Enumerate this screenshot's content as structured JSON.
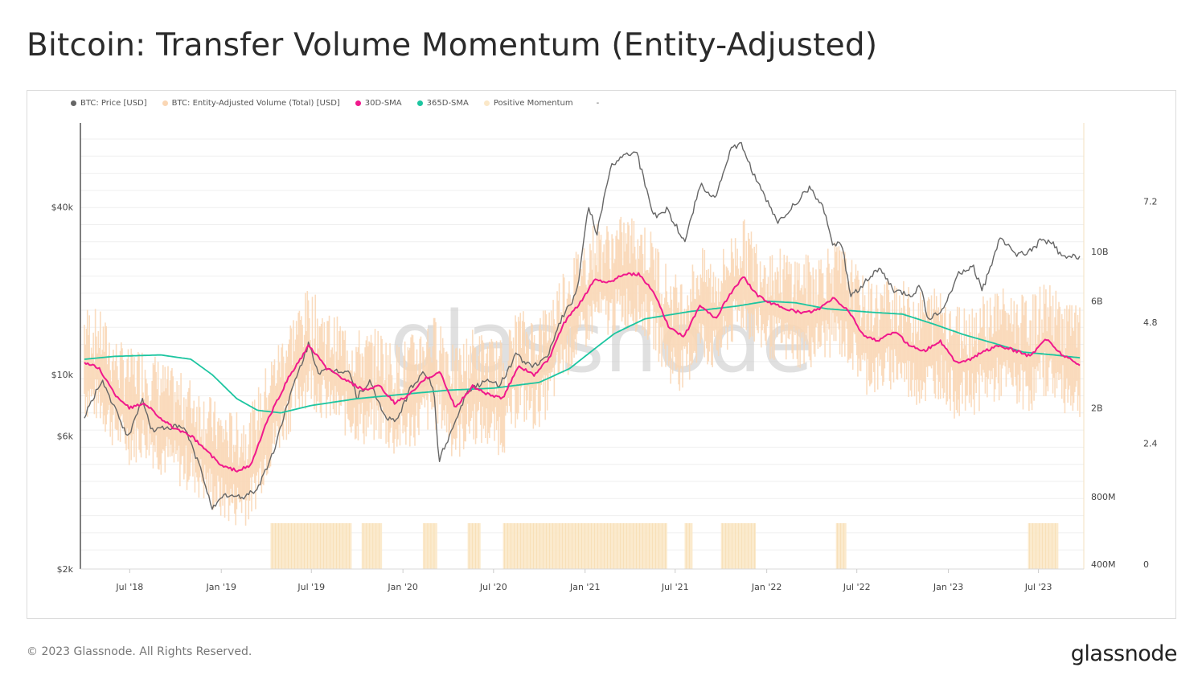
{
  "title": "Bitcoin: Transfer Volume Momentum (Entity-Adjusted)",
  "footer": "© 2023 Glassnode. All Rights Reserved.",
  "brand": "glassnode",
  "watermark": "glassnode",
  "legend": [
    {
      "label": "BTC: Price [USD]",
      "color": "#666666"
    },
    {
      "label": "BTC: Entity-Adjusted Volume (Total) [USD]",
      "color": "#fad7b5"
    },
    {
      "label": "30D-SMA",
      "color": "#f0198c"
    },
    {
      "label": "365D-SMA",
      "color": "#1cc5a0"
    },
    {
      "label": "Positive Momentum",
      "color": "#fbe8c8"
    },
    {
      "label": "-",
      "color": ""
    }
  ],
  "chart_data": {
    "type": "line",
    "x_tick_labels": [
      "Jul '18",
      "Jan '19",
      "Jul '19",
      "Jan '20",
      "Jul '20",
      "Jan '21",
      "Jul '21",
      "Jan '22",
      "Jul '22",
      "Jan '23",
      "Jul '23"
    ],
    "x_range": [
      "2018-04-01",
      "2023-09-22"
    ],
    "y_price_axis": {
      "scale": "log",
      "tick_labels": [
        "$40k",
        "$10k",
        "$6k",
        "$2k"
      ],
      "range": [
        2000,
        80000
      ]
    },
    "y_volume_axis": {
      "scale": "log",
      "tick_labels": [
        "10B",
        "6B",
        "2B",
        "800M",
        "400M"
      ]
    },
    "y_momentum_axis": {
      "scale": "linear",
      "tick_labels": [
        "7.2",
        "4.8",
        "2.4",
        "0"
      ],
      "range": [
        0,
        8.2
      ]
    },
    "series": [
      {
        "name": "BTC: Price [USD]",
        "color": "#666666",
        "axis": "price",
        "points": [
          [
            "2018-04-01",
            7000
          ],
          [
            "2018-05-06",
            9600
          ],
          [
            "2018-06-01",
            7500
          ],
          [
            "2018-06-29",
            5900
          ],
          [
            "2018-07-25",
            8200
          ],
          [
            "2018-08-15",
            6300
          ],
          [
            "2018-09-20",
            6500
          ],
          [
            "2018-10-20",
            6400
          ],
          [
            "2018-11-20",
            4600
          ],
          [
            "2018-12-15",
            3300
          ],
          [
            "2019-01-10",
            3700
          ],
          [
            "2019-02-10",
            3600
          ],
          [
            "2019-03-15",
            3900
          ],
          [
            "2019-04-15",
            5200
          ],
          [
            "2019-05-15",
            8000
          ],
          [
            "2019-06-26",
            12900
          ],
          [
            "2019-07-15",
            10200
          ],
          [
            "2019-08-15",
            10300
          ],
          [
            "2019-09-15",
            10300
          ],
          [
            "2019-09-30",
            8300
          ],
          [
            "2019-10-26",
            9400
          ],
          [
            "2019-11-25",
            7100
          ],
          [
            "2019-12-17",
            6700
          ],
          [
            "2020-01-15",
            8800
          ],
          [
            "2020-02-13",
            10300
          ],
          [
            "2020-03-03",
            8800
          ],
          [
            "2020-03-13",
            4900
          ],
          [
            "2020-04-15",
            6800
          ],
          [
            "2020-05-10",
            8800
          ],
          [
            "2020-06-15",
            9400
          ],
          [
            "2020-07-15",
            9200
          ],
          [
            "2020-08-15",
            11800
          ],
          [
            "2020-09-15",
            10600
          ],
          [
            "2020-10-15",
            11400
          ],
          [
            "2020-11-15",
            16000
          ],
          [
            "2020-12-15",
            19500
          ],
          [
            "2021-01-08",
            40000
          ],
          [
            "2021-01-25",
            32000
          ],
          [
            "2021-02-20",
            55000
          ],
          [
            "2021-03-13",
            61000
          ],
          [
            "2021-04-14",
            63000
          ],
          [
            "2021-05-19",
            37000
          ],
          [
            "2021-06-15",
            39000
          ],
          [
            "2021-07-20",
            30000
          ],
          [
            "2021-08-20",
            48000
          ],
          [
            "2021-09-20",
            43000
          ],
          [
            "2021-10-20",
            64000
          ],
          [
            "2021-11-10",
            67000
          ],
          [
            "2021-12-15",
            48000
          ],
          [
            "2022-01-24",
            35000
          ],
          [
            "2022-03-28",
            47000
          ],
          [
            "2022-04-30",
            38000
          ],
          [
            "2022-05-12",
            29000
          ],
          [
            "2022-06-01",
            30000
          ],
          [
            "2022-06-18",
            19000
          ],
          [
            "2022-08-14",
            24000
          ],
          [
            "2022-09-15",
            19800
          ],
          [
            "2022-10-20",
            19200
          ],
          [
            "2022-11-05",
            21000
          ],
          [
            "2022-11-21",
            15800
          ],
          [
            "2022-12-20",
            16800
          ],
          [
            "2023-01-20",
            22800
          ],
          [
            "2023-02-20",
            24500
          ],
          [
            "2023-03-10",
            20000
          ],
          [
            "2023-04-14",
            30500
          ],
          [
            "2023-05-20",
            27000
          ],
          [
            "2023-06-20",
            28000
          ],
          [
            "2023-07-05",
            30500
          ],
          [
            "2023-08-01",
            29300
          ],
          [
            "2023-08-18",
            26200
          ],
          [
            "2023-09-22",
            26600
          ]
        ]
      },
      {
        "name": "30D-SMA",
        "color": "#f0198c",
        "axis": "volume",
        "points": [
          [
            "2018-04-01",
            3200000000.0
          ],
          [
            "2018-05-01",
            3000000000.0
          ],
          [
            "2018-06-01",
            2300000000.0
          ],
          [
            "2018-07-01",
            2000000000.0
          ],
          [
            "2018-08-01",
            2100000000.0
          ],
          [
            "2018-09-01",
            1800000000.0
          ],
          [
            "2018-10-01",
            1600000000.0
          ],
          [
            "2018-11-01",
            1500000000.0
          ],
          [
            "2018-12-01",
            1300000000.0
          ],
          [
            "2019-01-01",
            1100000000.0
          ],
          [
            "2019-02-01",
            1050000000.0
          ],
          [
            "2019-03-01",
            1100000000.0
          ],
          [
            "2019-04-01",
            1700000000.0
          ],
          [
            "2019-05-15",
            2700000000.0
          ],
          [
            "2019-06-26",
            3800000000.0
          ],
          [
            "2019-08-01",
            3000000000.0
          ],
          [
            "2019-09-15",
            2600000000.0
          ],
          [
            "2019-10-15",
            2400000000.0
          ],
          [
            "2019-11-15",
            2500000000.0
          ],
          [
            "2019-12-15",
            2100000000.0
          ],
          [
            "2020-01-15",
            2300000000.0
          ],
          [
            "2020-02-15",
            2700000000.0
          ],
          [
            "2020-03-15",
            2900000000.0
          ],
          [
            "2020-04-15",
            2000000000.0
          ],
          [
            "2020-05-20",
            2500000000.0
          ],
          [
            "2020-06-20",
            2300000000.0
          ],
          [
            "2020-07-20",
            2200000000.0
          ],
          [
            "2020-08-20",
            3100000000.0
          ],
          [
            "2020-09-20",
            2800000000.0
          ],
          [
            "2020-10-20",
            3300000000.0
          ],
          [
            "2020-11-20",
            4800000000.0
          ],
          [
            "2020-12-20",
            5800000000.0
          ],
          [
            "2021-01-20",
            7500000000.0
          ],
          [
            "2021-02-20",
            7300000000.0
          ],
          [
            "2021-03-20",
            8000000000.0
          ],
          [
            "2021-04-20",
            7900000000.0
          ],
          [
            "2021-05-20",
            6500000000.0
          ],
          [
            "2021-06-20",
            4500000000.0
          ],
          [
            "2021-07-20",
            4200000000.0
          ],
          [
            "2021-08-20",
            5800000000.0
          ],
          [
            "2021-09-20",
            5000000000.0
          ],
          [
            "2021-10-20",
            6500000000.0
          ],
          [
            "2021-11-15",
            7700000000.0
          ],
          [
            "2021-12-15",
            6300000000.0
          ],
          [
            "2022-01-15",
            5800000000.0
          ],
          [
            "2022-02-15",
            5500000000.0
          ],
          [
            "2022-03-15",
            5300000000.0
          ],
          [
            "2022-04-15",
            5500000000.0
          ],
          [
            "2022-05-15",
            6200000000.0
          ],
          [
            "2022-06-15",
            5400000000.0
          ],
          [
            "2022-07-15",
            4200000000.0
          ],
          [
            "2022-08-15",
            4000000000.0
          ],
          [
            "2022-09-15",
            4400000000.0
          ],
          [
            "2022-10-15",
            3800000000.0
          ],
          [
            "2022-11-15",
            3600000000.0
          ],
          [
            "2022-12-15",
            4000000000.0
          ],
          [
            "2023-01-15",
            3200000000.0
          ],
          [
            "2023-02-15",
            3300000000.0
          ],
          [
            "2023-03-15",
            3600000000.0
          ],
          [
            "2023-04-15",
            3800000000.0
          ],
          [
            "2023-05-15",
            3600000000.0
          ],
          [
            "2023-06-15",
            3400000000.0
          ],
          [
            "2023-07-15",
            4100000000.0
          ],
          [
            "2023-08-15",
            3500000000.0
          ],
          [
            "2023-09-22",
            3100000000.0
          ]
        ]
      },
      {
        "name": "365D-SMA",
        "color": "#1cc5a0",
        "axis": "volume",
        "points": [
          [
            "2018-04-01",
            3300000000.0
          ],
          [
            "2018-06-01",
            3400000000.0
          ],
          [
            "2018-09-01",
            3450000000.0
          ],
          [
            "2018-11-01",
            3300000000.0
          ],
          [
            "2018-12-15",
            2800000000.0
          ],
          [
            "2019-02-01",
            2200000000.0
          ],
          [
            "2019-03-15",
            1950000000.0
          ],
          [
            "2019-05-01",
            1900000000.0
          ],
          [
            "2019-07-01",
            2050000000.0
          ],
          [
            "2019-10-01",
            2200000000.0
          ],
          [
            "2020-01-01",
            2300000000.0
          ],
          [
            "2020-04-01",
            2400000000.0
          ],
          [
            "2020-07-01",
            2450000000.0
          ],
          [
            "2020-10-01",
            2600000000.0
          ],
          [
            "2020-12-01",
            3000000000.0
          ],
          [
            "2021-01-15",
            3600000000.0
          ],
          [
            "2021-03-01",
            4300000000.0
          ],
          [
            "2021-05-01",
            5000000000.0
          ],
          [
            "2021-08-01",
            5400000000.0
          ],
          [
            "2021-11-01",
            5700000000.0
          ],
          [
            "2022-01-01",
            6000000000.0
          ],
          [
            "2022-03-01",
            5900000000.0
          ],
          [
            "2022-05-01",
            5550000000.0
          ],
          [
            "2022-08-01",
            5350000000.0
          ],
          [
            "2022-10-01",
            5250000000.0
          ],
          [
            "2022-12-01",
            4750000000.0
          ],
          [
            "2023-02-01",
            4250000000.0
          ],
          [
            "2023-04-01",
            3900000000.0
          ],
          [
            "2023-06-01",
            3550000000.0
          ],
          [
            "2023-08-01",
            3450000000.0
          ],
          [
            "2023-09-22",
            3350000000.0
          ]
        ]
      }
    ],
    "volume_band": {
      "name": "BTC: Entity-Adjusted Volume (Total) [USD]",
      "color": "#fad7b5",
      "axis": "volume",
      "follows": "30D-SMA",
      "low_factor": 0.55,
      "high_factor": 1.6
    },
    "positive_momentum_periods": [
      [
        "2019-04-10",
        "2019-09-20"
      ],
      [
        "2019-10-10",
        "2019-11-20"
      ],
      [
        "2020-02-10",
        "2020-03-10"
      ],
      [
        "2020-05-10",
        "2020-06-05"
      ],
      [
        "2020-07-20",
        "2021-06-15"
      ],
      [
        "2021-07-20",
        "2021-08-05"
      ],
      [
        "2021-10-01",
        "2021-12-10"
      ],
      [
        "2022-05-20",
        "2022-06-10"
      ],
      [
        "2023-06-10",
        "2023-08-10"
      ]
    ],
    "positive_momentum_color": "#fbe8c8"
  }
}
